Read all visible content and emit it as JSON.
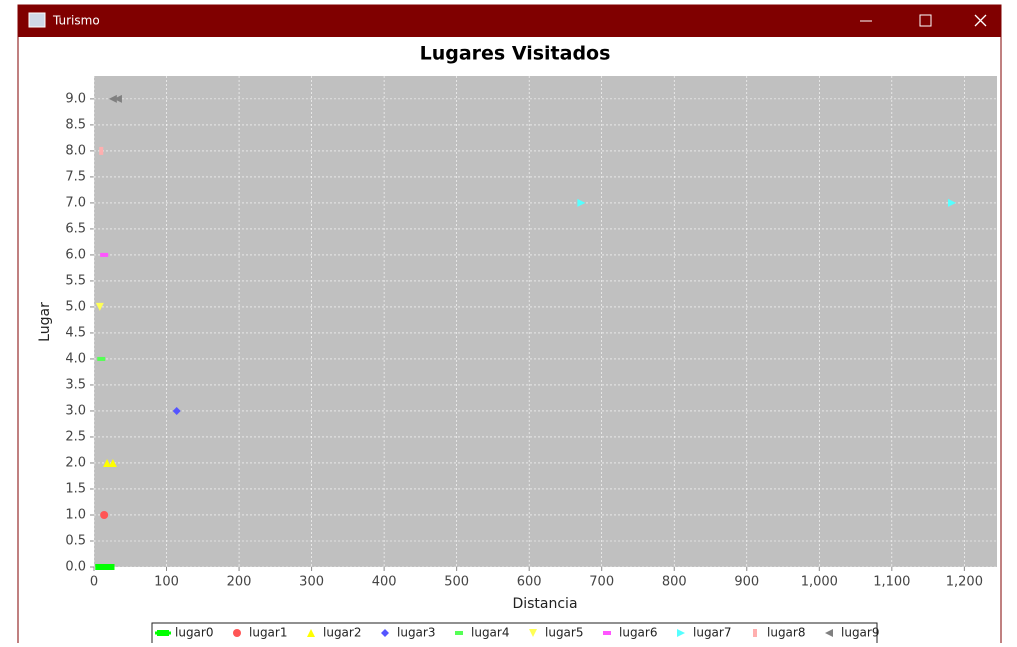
{
  "window": {
    "title": "Turismo"
  },
  "chart_data": {
    "type": "scatter",
    "title": "Lugares Visitados",
    "x_label": "Distancia",
    "y_label": "Lugar",
    "xlim": [
      0,
      1245
    ],
    "ylim": [
      0,
      9.44
    ],
    "xticks": [
      0,
      100,
      200,
      300,
      400,
      500,
      600,
      700,
      800,
      900,
      {
        "value": 1000,
        "label": "1,000"
      },
      {
        "value": 1100,
        "label": "1,100"
      },
      {
        "value": 1200,
        "label": "1,200"
      }
    ],
    "yticks": [
      {
        "value": 0,
        "label": "0.0"
      },
      {
        "value": 0.5,
        "label": "0.5"
      },
      {
        "value": 1,
        "label": "1.0"
      },
      {
        "value": 1.5,
        "label": "1.5"
      },
      {
        "value": 2,
        "label": "2.0"
      },
      {
        "value": 2.5,
        "label": "2.5"
      },
      {
        "value": 3,
        "label": "3.0"
      },
      {
        "value": 3.5,
        "label": "3.5"
      },
      {
        "value": 4,
        "label": "4.0"
      },
      {
        "value": 4.5,
        "label": "4.5"
      },
      {
        "value": 5,
        "label": "5.0"
      },
      {
        "value": 5.5,
        "label": "5.5"
      },
      {
        "value": 6,
        "label": "6.0"
      },
      {
        "value": 6.5,
        "label": "6.5"
      },
      {
        "value": 7,
        "label": "7.0"
      },
      {
        "value": 7.5,
        "label": "7.5"
      },
      {
        "value": 8,
        "label": "8.0"
      },
      {
        "value": 8.5,
        "label": "8.5"
      },
      {
        "value": 9,
        "label": "9.0"
      }
    ],
    "grid": true,
    "legend": "bottom",
    "series": [
      {
        "name": "lugar0",
        "color": "#00ff00",
        "marker": "square",
        "x": [
          10,
          20
        ],
        "values": [
          0,
          0
        ]
      },
      {
        "name": "lugar1",
        "color": "#ff5555",
        "marker": "circle",
        "x": [
          14
        ],
        "values": [
          1
        ]
      },
      {
        "name": "lugar2",
        "color": "#ffff00",
        "marker": "triangle-up",
        "x": [
          18,
          26
        ],
        "values": [
          2,
          2
        ]
      },
      {
        "name": "lugar3",
        "color": "#5555ff",
        "marker": "diamond",
        "x": [
          114
        ],
        "values": [
          3
        ]
      },
      {
        "name": "lugar4",
        "color": "#55ff55",
        "marker": "rect",
        "x": [
          10
        ],
        "values": [
          4
        ]
      },
      {
        "name": "lugar5",
        "color": "#ffff55",
        "marker": "triangle-down",
        "x": [
          8
        ],
        "values": [
          5
        ]
      },
      {
        "name": "lugar6",
        "color": "#ff55ff",
        "marker": "rect",
        "x": [
          14
        ],
        "values": [
          6
        ]
      },
      {
        "name": "lugar7",
        "color": "#55ffff",
        "marker": "triangle-right",
        "x": [
          672,
          1183
        ],
        "values": [
          7,
          7
        ]
      },
      {
        "name": "lugar8",
        "color": "#ffafaf",
        "marker": "tall-rect",
        "x": [
          10
        ],
        "values": [
          8
        ]
      },
      {
        "name": "lugar9",
        "color": "#808080",
        "marker": "triangle-left",
        "x": [
          26,
          33
        ],
        "values": [
          9,
          9
        ]
      }
    ]
  }
}
